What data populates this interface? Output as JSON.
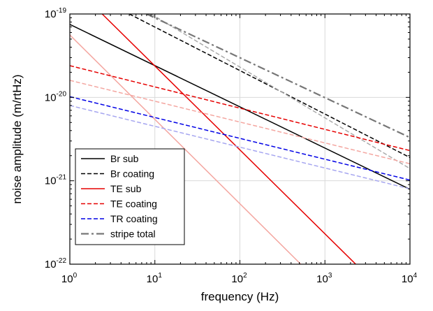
{
  "chart_data": {
    "type": "line",
    "title": "",
    "xlabel": "frequency (Hz)",
    "ylabel": "noise amplitude (m/rtHz)",
    "x_scale": "log",
    "y_scale": "log",
    "xlim": [
      1,
      10000
    ],
    "ylim": [
      1e-22,
      1e-19
    ],
    "grid": true,
    "legend_position": "bottom-left",
    "x_ticks": [
      {
        "value": 1,
        "base": "10",
        "exp": "0"
      },
      {
        "value": 10,
        "base": "10",
        "exp": "1"
      },
      {
        "value": 100,
        "base": "10",
        "exp": "2"
      },
      {
        "value": 1000,
        "base": "10",
        "exp": "3"
      },
      {
        "value": 10000,
        "base": "10",
        "exp": "4"
      }
    ],
    "y_ticks": [
      {
        "value": 1e-22,
        "base": "10",
        "exp": "-22"
      },
      {
        "value": 1e-21,
        "base": "10",
        "exp": "-21"
      },
      {
        "value": 1e-20,
        "base": "10",
        "exp": "-20"
      },
      {
        "value": 1e-19,
        "base": "10",
        "exp": "-19"
      }
    ],
    "series": [
      {
        "name": "Br sub",
        "color": "#000000",
        "dash": "solid",
        "in_legend": true,
        "x": [
          1,
          10000
        ],
        "y": [
          7.5e-20,
          7.9e-22
        ]
      },
      {
        "name": "Br coating",
        "color": "#000000",
        "dash": "dashed",
        "in_legend": true,
        "x": [
          5,
          10000
        ],
        "y": [
          1e-19,
          1.9e-21
        ]
      },
      {
        "name": "",
        "color": "#aaaaaa",
        "dash": "dashed",
        "in_legend": false,
        "x": [
          9,
          10000
        ],
        "y": [
          1e-19,
          1.4e-21
        ]
      },
      {
        "name": "TE sub",
        "color": "#e60000",
        "dash": "solid",
        "in_legend": true,
        "x": [
          2.4,
          2300
        ],
        "y": [
          1e-19,
          1e-22
        ]
      },
      {
        "name": "",
        "color": "#f4a6a0",
        "dash": "solid",
        "in_legend": false,
        "x": [
          1,
          520
        ],
        "y": [
          5.6e-20,
          1e-22
        ]
      },
      {
        "name": "TE coating",
        "color": "#e60000",
        "dash": "dashed",
        "in_legend": true,
        "x": [
          1,
          10000
        ],
        "y": [
          2.4e-20,
          2.3e-21
        ]
      },
      {
        "name": "",
        "color": "#f4a6a0",
        "dash": "dashed",
        "in_legend": false,
        "x": [
          1,
          10000
        ],
        "y": [
          1.6e-20,
          1.6e-21
        ]
      },
      {
        "name": "TR coating",
        "color": "#0000e6",
        "dash": "dashed",
        "in_legend": true,
        "x": [
          1,
          10000
        ],
        "y": [
          1.02e-20,
          1.02e-21
        ]
      },
      {
        "name": "",
        "color": "#a6a6f0",
        "dash": "dashed",
        "in_legend": false,
        "x": [
          1,
          10000
        ],
        "y": [
          8e-21,
          8e-22
        ]
      },
      {
        "name": "stripe total",
        "color": "#777777",
        "dash": "dashdot",
        "in_legend": true,
        "x": [
          8,
          10000
        ],
        "y": [
          1e-19,
          3.3e-21
        ]
      }
    ]
  }
}
